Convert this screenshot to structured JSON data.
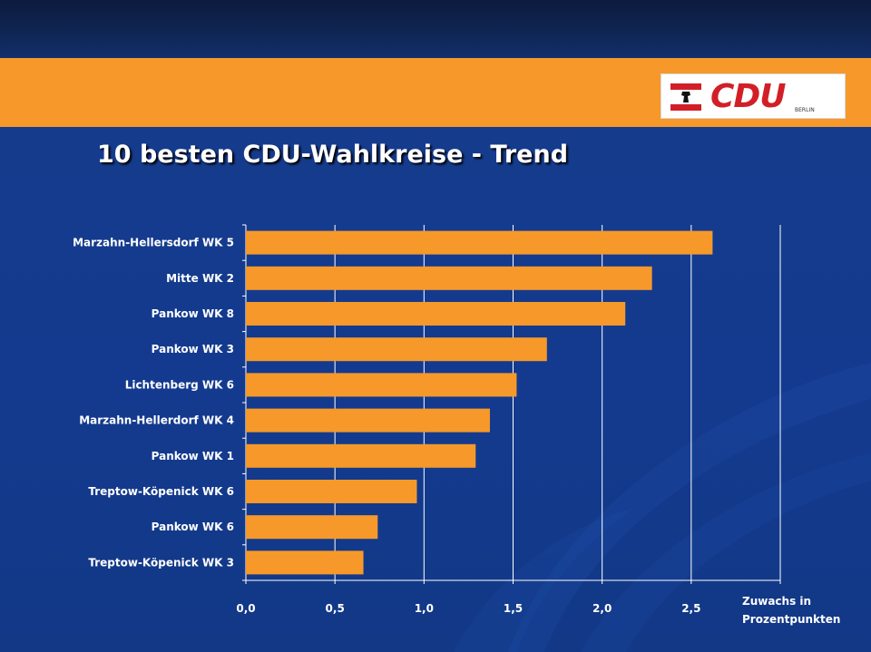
{
  "title": "10 besten CDU-Wahlkreise - Trend",
  "logo": {
    "text": "CDU",
    "sub": "BERLIN"
  },
  "colors": {
    "bar": "#f6992a",
    "background": "#143a8f",
    "band": "#f6992a",
    "text": "#ffffff"
  },
  "chart_data": {
    "type": "bar",
    "orientation": "horizontal",
    "categories": [
      "Marzahn-Hellersdorf WK 5",
      "Mitte WK 2",
      "Pankow WK 8",
      "Pankow WK 3",
      "Lichtenberg WK 6",
      "Marzahn-Hellerdorf WK 4",
      "Pankow WK 1",
      "Treptow-Köpenick WK 6",
      "Pankow WK 6",
      "Treptow-Köpenick  WK 3"
    ],
    "values": [
      2.62,
      2.28,
      2.13,
      1.69,
      1.52,
      1.37,
      1.29,
      0.96,
      0.74,
      0.66
    ],
    "xlim": [
      0,
      3.0
    ],
    "ticks": [
      "0,0",
      "0,5",
      "1,0",
      "1,5",
      "2,0",
      "2,5"
    ],
    "tick_values": [
      0,
      0.5,
      1.0,
      1.5,
      2.0,
      2.5
    ],
    "xlabel": [
      "Zuwachs in",
      "Prozentpunkten"
    ],
    "grid": true
  }
}
